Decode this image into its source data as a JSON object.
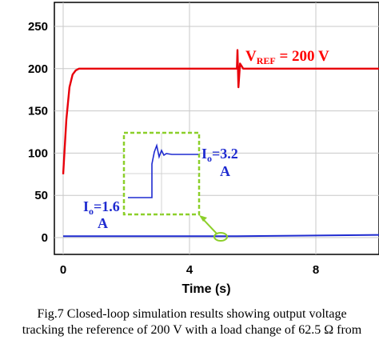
{
  "chart_data": {
    "type": "line",
    "title": "",
    "xlabel": "Time (s)",
    "ylabel": "",
    "xlim": [
      0,
      10
    ],
    "ylim": [
      0,
      250
    ],
    "xticks": [
      "0",
      "4",
      "8"
    ],
    "yticks": [
      "0",
      "50",
      "100",
      "150",
      "200",
      "250"
    ],
    "grid": true,
    "series": [
      {
        "color": "#e8000b",
        "x": [
          0,
          0.1,
          0.2,
          0.3,
          0.4,
          0.5,
          0.6,
          5.4,
          5.5,
          5.52,
          5.55,
          5.6,
          5.7,
          10
        ],
        "y": [
          75,
          140,
          178,
          193,
          198,
          200,
          200,
          200,
          200,
          222,
          178,
          206,
          200,
          200
        ]
      },
      {
        "color": "#1f2bd0",
        "x": [
          0,
          5.5,
          10
        ],
        "y": [
          1.6,
          1.6,
          3.2
        ]
      }
    ],
    "annotations": {
      "vref": {
        "main": "V",
        "sub": "REF",
        "rest": " = 200 V"
      },
      "io_before": {
        "line1_main": "I",
        "line1_sub": "o",
        "line1_rest": "=1.6",
        "line2": "A"
      },
      "io_after": {
        "line1_main": "I",
        "line1_sub": "o",
        "line1_rest": "=3.2",
        "line2": "A"
      }
    }
  },
  "caption": {
    "line1": "Fig.7 Closed-loop simulation results showing output voltage",
    "line2": "tracking the reference of 200 V with a load change of 62.5 Ω from"
  }
}
